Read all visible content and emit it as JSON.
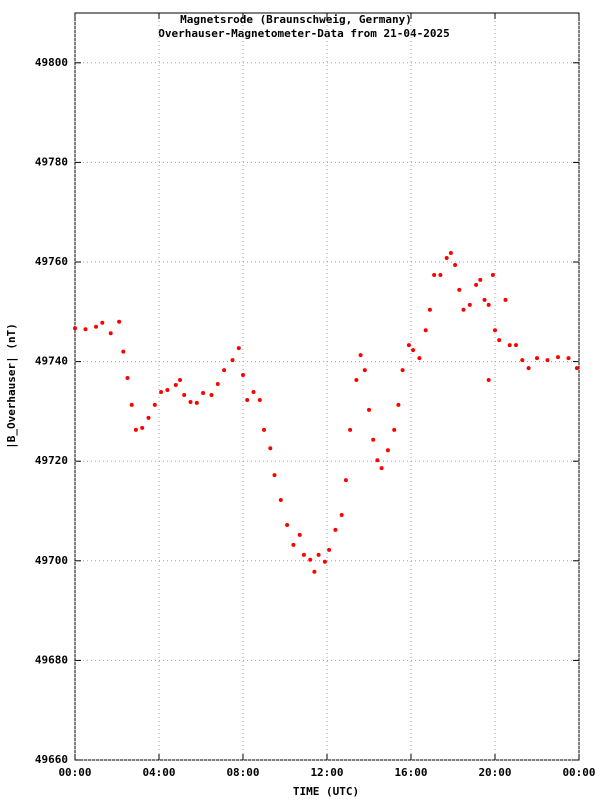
{
  "chart_data": {
    "type": "scatter",
    "title": "Magnetsrode (Braunschweig, Germany)",
    "subtitle": "Overhauser-Magnetometer-Data from 21-04-2025",
    "x_label": "TIME (UTC)",
    "y_label": "|B_Overhauser| (nT)",
    "color": "#ff0000",
    "grid": true,
    "xlim": [
      0,
      24
    ],
    "xticks": [
      {
        "value": 0,
        "label": "00:00"
      },
      {
        "value": 4,
        "label": "04:00"
      },
      {
        "value": 8,
        "label": "08:00"
      },
      {
        "value": 12,
        "label": "12:00"
      },
      {
        "value": 16,
        "label": "16:00"
      },
      {
        "value": 20,
        "label": "20:00"
      },
      {
        "value": 24,
        "label": "00:00"
      }
    ],
    "ylim": [
      49660,
      49810
    ],
    "yticks": [
      49660,
      49680,
      49700,
      49720,
      49740,
      49760,
      49780,
      49800
    ],
    "x": [
      0.0,
      0.5,
      1.0,
      1.3,
      1.7,
      2.1,
      2.3,
      2.5,
      2.7,
      2.9,
      3.2,
      3.5,
      3.8,
      4.1,
      4.4,
      4.8,
      5.0,
      5.2,
      5.5,
      5.8,
      6.1,
      6.5,
      6.8,
      7.1,
      7.5,
      7.8,
      8.0,
      8.2,
      8.5,
      8.8,
      9.0,
      9.3,
      9.5,
      9.8,
      10.1,
      10.4,
      10.7,
      10.9,
      11.2,
      11.4,
      11.6,
      11.9,
      12.1,
      12.4,
      12.7,
      12.9,
      13.1,
      13.4,
      13.6,
      13.8,
      14.0,
      14.2,
      14.4,
      14.6,
      14.9,
      15.2,
      15.4,
      15.6,
      15.9,
      16.1,
      16.4,
      16.7,
      16.9,
      17.1,
      17.4,
      17.7,
      17.9,
      18.1,
      18.3,
      18.5,
      18.8,
      19.1,
      19.3,
      19.5,
      19.7,
      19.7,
      19.9,
      20.0,
      20.2,
      20.5,
      20.7,
      21.0,
      21.3,
      21.6,
      22.0,
      22.5,
      23.0,
      23.5,
      23.9
    ],
    "values": [
      49746.7,
      49746.5,
      49747,
      49747.8,
      49745.7,
      49748,
      49742,
      49736.7,
      49731.3,
      49726.3,
      49726.7,
      49728.7,
      49731.3,
      49733.9,
      49734.3,
      49735.3,
      49736.3,
      49733.3,
      49731.9,
      49731.7,
      49733.7,
      49733.3,
      49735.5,
      49738.3,
      49740.3,
      49742.7,
      49737.3,
      49732.3,
      49733.9,
      49732.3,
      49726.3,
      49722.6,
      49717.2,
      49712.2,
      49707.2,
      49703.2,
      49705.2,
      49701.2,
      49700.2,
      49697.8,
      49701.2,
      49699.8,
      49702.2,
      49706.2,
      49709.2,
      49716.2,
      49726.3,
      49736.3,
      49741.3,
      49738.3,
      49730.3,
      49724.3,
      49720.2,
      49718.6,
      49722.2,
      49726.3,
      49731.3,
      49738.3,
      49743.3,
      49742.3,
      49740.7,
      49746.3,
      49750.4,
      49757.4,
      49757.4,
      49760.8,
      49761.8,
      49759.4,
      49754.4,
      49750.4,
      49751.4,
      49755.4,
      49756.4,
      49752.4,
      49751.4,
      49736.3,
      49757.4,
      49746.3,
      49744.3,
      49752.4,
      49743.3,
      49743.3,
      49740.3,
      49738.7,
      49740.7,
      49740.3,
      49740.9,
      49740.7,
      49738.7
    ]
  }
}
